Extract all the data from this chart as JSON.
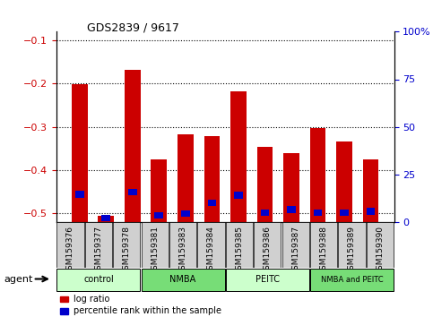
{
  "title": "GDS2839 / 9617",
  "categories": [
    "GSM159376",
    "GSM159377",
    "GSM159378",
    "GSM159381",
    "GSM159383",
    "GSM159384",
    "GSM159385",
    "GSM159386",
    "GSM159387",
    "GSM159388",
    "GSM159389",
    "GSM159390"
  ],
  "log_ratio": [
    -0.202,
    -0.505,
    -0.168,
    -0.375,
    -0.318,
    -0.322,
    -0.218,
    -0.347,
    -0.36,
    -0.303,
    -0.335,
    -0.375
  ],
  "percentile_rank": [
    14.5,
    2.0,
    15.5,
    3.5,
    4.5,
    10.0,
    14.0,
    5.0,
    6.5,
    5.0,
    5.0,
    5.5
  ],
  "ylim_left": [
    -0.52,
    -0.08
  ],
  "ylim_right": [
    0,
    100
  ],
  "yticks_left": [
    -0.5,
    -0.4,
    -0.3,
    -0.2,
    -0.1
  ],
  "yticks_right": [
    0,
    25,
    50,
    75,
    100
  ],
  "bar_color_red": "#cc0000",
  "bar_color_blue": "#0000cc",
  "grid_color": "#000000",
  "agent_groups": [
    {
      "label": "control",
      "start": 0,
      "end": 2,
      "color": "#ccffcc"
    },
    {
      "label": "NMBA",
      "start": 3,
      "end": 5,
      "color": "#77dd77"
    },
    {
      "label": "PEITC",
      "start": 6,
      "end": 8,
      "color": "#ccffcc"
    },
    {
      "label": "NMBA and PEITC",
      "start": 9,
      "end": 11,
      "color": "#77dd77"
    }
  ],
  "legend_items": [
    {
      "label": "log ratio",
      "color": "#cc0000"
    },
    {
      "label": "percentile rank within the sample",
      "color": "#0000cc"
    }
  ],
  "tick_label_color_left": "#cc0000",
  "tick_label_color_right": "#0000cc",
  "bar_width": 0.6,
  "agent_label": "agent"
}
